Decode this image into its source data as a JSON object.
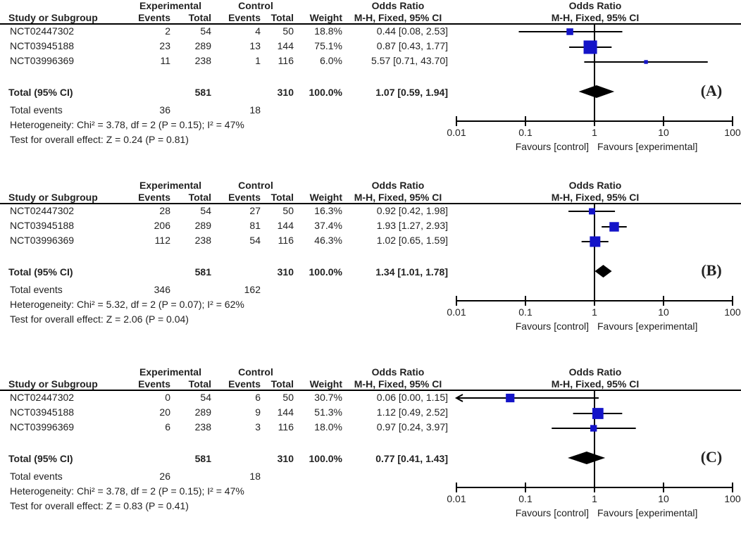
{
  "chart_data": [
    {
      "type": "forest",
      "panel_label": "(A)",
      "header": {
        "experimental": "Experimental",
        "control": "Control",
        "odds_ratio_left": "Odds Ratio",
        "odds_ratio_right": "Odds Ratio",
        "study": "Study or Subgroup",
        "events": "Events",
        "total": "Total",
        "weight": "Weight",
        "method_left": "M-H, Fixed, 95% CI",
        "method_right": "M-H, Fixed, 95% CI"
      },
      "studies": [
        {
          "name": "NCT02447302",
          "exp_events": "2",
          "exp_total": "54",
          "ctl_events": "4",
          "ctl_total": "50",
          "weight": "18.8%",
          "ci_text": "0.44 [0.08, 2.53]",
          "or": 0.44,
          "lo": 0.08,
          "hi": 2.53,
          "w": 18.8
        },
        {
          "name": "NCT03945188",
          "exp_events": "23",
          "exp_total": "289",
          "ctl_events": "13",
          "ctl_total": "144",
          "weight": "75.1%",
          "ci_text": "0.87 [0.43, 1.77]",
          "or": 0.87,
          "lo": 0.43,
          "hi": 1.77,
          "w": 75.1
        },
        {
          "name": "NCT03996369",
          "exp_events": "11",
          "exp_total": "238",
          "ctl_events": "1",
          "ctl_total": "116",
          "weight": "6.0%",
          "ci_text": "5.57 [0.71, 43.70]",
          "or": 5.57,
          "lo": 0.71,
          "hi": 43.7,
          "w": 6.0
        }
      ],
      "total": {
        "label": "Total (95% CI)",
        "exp_total": "581",
        "ctl_total": "310",
        "weight": "100.0%",
        "ci_text": "1.07 [0.59, 1.94]",
        "or": 1.07,
        "lo": 0.59,
        "hi": 1.94
      },
      "total_events": {
        "label": "Total events",
        "exp": "36",
        "ctl": "18"
      },
      "heterogeneity": "Heterogeneity: Chi² = 3.78, df = 2 (P = 0.15); I² = 47%",
      "overall_effect": "Test for overall effect: Z = 0.24 (P = 0.81)",
      "axis": {
        "scale": "log",
        "ticks": [
          0.01,
          0.1,
          1,
          10,
          100
        ],
        "tick_labels": [
          "0.01",
          "0.1",
          "1",
          "10",
          "100"
        ],
        "range": [
          0.01,
          100
        ]
      },
      "favours_left": "Favours [control]",
      "favours_right": "Favours [experimental]"
    },
    {
      "type": "forest",
      "panel_label": "(B)",
      "header": {
        "experimental": "Experimental",
        "control": "Control",
        "odds_ratio_left": "Odds Ratio",
        "odds_ratio_right": "Odds Ratio",
        "study": "Study or Subgroup",
        "events": "Events",
        "total": "Total",
        "weight": "Weight",
        "method_left": "M-H, Fixed, 95% CI",
        "method_right": "M-H, Fixed, 95% CI"
      },
      "studies": [
        {
          "name": "NCT02447302",
          "exp_events": "28",
          "exp_total": "54",
          "ctl_events": "27",
          "ctl_total": "50",
          "weight": "16.3%",
          "ci_text": "0.92 [0.42, 1.98]",
          "or": 0.92,
          "lo": 0.42,
          "hi": 1.98,
          "w": 16.3
        },
        {
          "name": "NCT03945188",
          "exp_events": "206",
          "exp_total": "289",
          "ctl_events": "81",
          "ctl_total": "144",
          "weight": "37.4%",
          "ci_text": "1.93 [1.27, 2.93]",
          "or": 1.93,
          "lo": 1.27,
          "hi": 2.93,
          "w": 37.4
        },
        {
          "name": "NCT03996369",
          "exp_events": "112",
          "exp_total": "238",
          "ctl_events": "54",
          "ctl_total": "116",
          "weight": "46.3%",
          "ci_text": "1.02 [0.65, 1.59]",
          "or": 1.02,
          "lo": 0.65,
          "hi": 1.59,
          "w": 46.3
        }
      ],
      "total": {
        "label": "Total (95% CI)",
        "exp_total": "581",
        "ctl_total": "310",
        "weight": "100.0%",
        "ci_text": "1.34 [1.01, 1.78]",
        "or": 1.34,
        "lo": 1.01,
        "hi": 1.78
      },
      "total_events": {
        "label": "Total events",
        "exp": "346",
        "ctl": "162"
      },
      "heterogeneity": "Heterogeneity: Chi² = 5.32, df = 2 (P = 0.07); I² = 62%",
      "overall_effect": "Test for overall effect: Z = 2.06 (P = 0.04)",
      "axis": {
        "scale": "log",
        "ticks": [
          0.01,
          0.1,
          1,
          10,
          100
        ],
        "tick_labels": [
          "0.01",
          "0.1",
          "1",
          "10",
          "100"
        ],
        "range": [
          0.01,
          100
        ]
      },
      "favours_left": "Favours [control]",
      "favours_right": "Favours [experimental]"
    },
    {
      "type": "forest",
      "panel_label": "(C)",
      "header": {
        "experimental": "Experimental",
        "control": "Control",
        "odds_ratio_left": "Odds Ratio",
        "odds_ratio_right": "Odds Ratio",
        "study": "Study or Subgroup",
        "events": "Events",
        "total": "Total",
        "weight": "Weight",
        "method_left": "M-H, Fixed, 95% CI",
        "method_right": "M-H, Fixed, 95% CI"
      },
      "studies": [
        {
          "name": "NCT02447302",
          "exp_events": "0",
          "exp_total": "54",
          "ctl_events": "6",
          "ctl_total": "50",
          "weight": "30.7%",
          "ci_text": "0.06 [0.00, 1.15]",
          "or": 0.06,
          "lo": 0.001,
          "hi": 1.15,
          "w": 30.7,
          "lo_arrow": true
        },
        {
          "name": "NCT03945188",
          "exp_events": "20",
          "exp_total": "289",
          "ctl_events": "9",
          "ctl_total": "144",
          "weight": "51.3%",
          "ci_text": "1.12 [0.49, 2.52]",
          "or": 1.12,
          "lo": 0.49,
          "hi": 2.52,
          "w": 51.3
        },
        {
          "name": "NCT03996369",
          "exp_events": "6",
          "exp_total": "238",
          "ctl_events": "3",
          "ctl_total": "116",
          "weight": "18.0%",
          "ci_text": "0.97 [0.24, 3.97]",
          "or": 0.97,
          "lo": 0.24,
          "hi": 3.97,
          "w": 18.0
        }
      ],
      "total": {
        "label": "Total (95% CI)",
        "exp_total": "581",
        "ctl_total": "310",
        "weight": "100.0%",
        "ci_text": "0.77 [0.41, 1.43]",
        "or": 0.77,
        "lo": 0.41,
        "hi": 1.43
      },
      "total_events": {
        "label": "Total events",
        "exp": "26",
        "ctl": "18"
      },
      "heterogeneity": "Heterogeneity: Chi² = 3.78, df = 2 (P = 0.15); I² = 47%",
      "overall_effect": "Test for overall effect: Z = 0.83 (P = 0.41)",
      "axis": {
        "scale": "log",
        "ticks": [
          0.01,
          0.1,
          1,
          10,
          100
        ],
        "tick_labels": [
          "0.01",
          "0.1",
          "1",
          "10",
          "100"
        ],
        "range": [
          0.01,
          100
        ]
      },
      "favours_left": "Favours [control]",
      "favours_right": "Favours [experimental]"
    }
  ],
  "colors": {
    "square": "#1414c8",
    "diamond": "#000000",
    "line": "#000000"
  }
}
